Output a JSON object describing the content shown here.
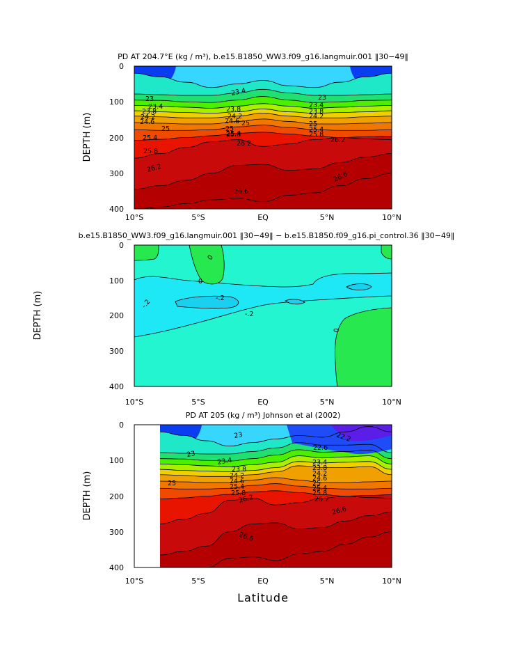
{
  "chart_data": [
    {
      "type": "heatmap",
      "subtype": "filled-contour",
      "title": "PD AT 204.7°E (kg / m³), b.e15.B1850_WW3.f09_g16.langmuir.001 ‖30−49‖",
      "ylabel": "DEPTH (m)",
      "xlabel": "",
      "x_ticks": [
        "10°S",
        "5°S",
        "EQ",
        "5°N",
        "10°N"
      ],
      "y_ticks": [
        "0",
        "100",
        "200",
        "300",
        "400"
      ],
      "xlim": [
        -10,
        10
      ],
      "ylim": [
        400,
        0
      ],
      "contour_labels": [
        "23",
        "23.4",
        "23.8",
        "24.2",
        "24.6",
        "25",
        "25.4",
        "25.8",
        "26.2",
        "26.6"
      ],
      "contour_levels": [
        {
          "level": 22.6,
          "depth": [
            20,
            30,
            45,
            60,
            50,
            40,
            55,
            60,
            45,
            30,
            20
          ]
        },
        {
          "level": 23.0,
          "depth": [
            78,
            80,
            82,
            82,
            75,
            65,
            75,
            82,
            82,
            80,
            78
          ]
        },
        {
          "level": 23.4,
          "depth": [
            95,
            96,
            100,
            102,
            95,
            85,
            95,
            102,
            100,
            96,
            95
          ]
        },
        {
          "level": 23.8,
          "depth": [
            110,
            112,
            115,
            118,
            112,
            105,
            112,
            118,
            115,
            112,
            110
          ]
        },
        {
          "level": 24.2,
          "depth": [
            125,
            128,
            130,
            132,
            128,
            120,
            128,
            132,
            130,
            128,
            125
          ]
        },
        {
          "level": 24.6,
          "depth": [
            140,
            142,
            145,
            145,
            140,
            132,
            140,
            145,
            145,
            142,
            140
          ]
        },
        {
          "level": 25.0,
          "depth": [
            158,
            160,
            162,
            162,
            155,
            148,
            155,
            162,
            162,
            160,
            158
          ]
        },
        {
          "level": 25.4,
          "depth": [
            178,
            180,
            180,
            178,
            170,
            165,
            172,
            178,
            180,
            180,
            178
          ]
        },
        {
          "level": 25.8,
          "depth": [
            208,
            205,
            200,
            195,
            188,
            185,
            190,
            196,
            200,
            204,
            206
          ]
        },
        {
          "level": 26.2,
          "depth": [
            258,
            245,
            228,
            212,
            206,
            225,
            218,
            206,
            200,
            198,
            196
          ]
        },
        {
          "level": 26.6,
          "depth": [
            345,
            335,
            320,
            300,
            278,
            275,
            292,
            288,
            270,
            255,
            245
          ]
        },
        {
          "level": 26.8,
          "depth": [
            400,
            395,
            385,
            375,
            370,
            380,
            362,
            355,
            335,
            315,
            300
          ]
        }
      ]
    },
    {
      "type": "heatmap",
      "subtype": "filled-contour",
      "title": "b.e15.B1850_WW3.f09_g16.langmuir.001 ‖30−49‖ − b.e15.B1850.f09_g16.pi_control.36 ‖30−49‖",
      "ylabel": "DEPTH (m)",
      "xlabel": "",
      "x_ticks": [
        "10°S",
        "5°S",
        "EQ",
        "5°N",
        "10°N"
      ],
      "y_ticks": [
        "0",
        "100",
        "200",
        "300",
        "400"
      ],
      "xlim": [
        -10,
        10
      ],
      "ylim": [
        400,
        0
      ],
      "contour_labels": [
        "0",
        "0",
        "-.2",
        "-.2",
        "0"
      ],
      "regions": [
        {
          "value": ">0",
          "description": "positive anomaly (green)"
        },
        {
          "value": "-0.2 to 0",
          "description": "slight negative anomaly (cyan)"
        },
        {
          "value": "<-0.2",
          "description": "negative anomaly (light blue)"
        }
      ]
    },
    {
      "type": "heatmap",
      "subtype": "filled-contour",
      "title": "PD AT 205 (kg / m³) Johnson et al (2002)",
      "ylabel": "DEPTH (m)",
      "xlabel": "Latitude",
      "x_ticks": [
        "10°S",
        "5°S",
        "EQ",
        "5°N",
        "10°N"
      ],
      "y_ticks": [
        "0",
        "100",
        "200",
        "300",
        "400"
      ],
      "xlim": [
        -10,
        10
      ],
      "ylim": [
        400,
        0
      ],
      "data_xrange": [
        -8,
        10
      ],
      "contour_labels": [
        "23",
        "23",
        "23.4",
        "23.8",
        "24.2",
        "24.6",
        "25",
        "25.4",
        "25.8",
        "26.2",
        "26.6",
        "26.6",
        "22.2",
        "22.6",
        "23.4",
        "23.8",
        "24.2",
        "24.6",
        "25",
        "25.4",
        "25.8",
        "26.2",
        "26.6"
      ]
    }
  ]
}
